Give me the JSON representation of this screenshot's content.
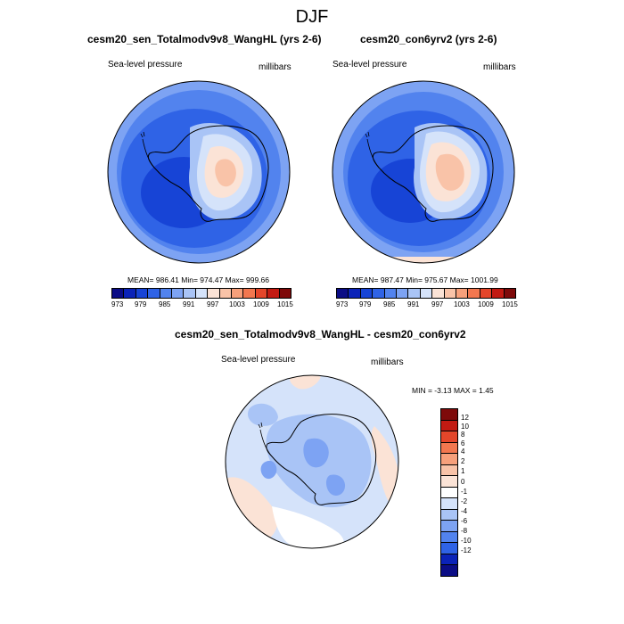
{
  "figure": {
    "title": "DJF"
  },
  "panels": [
    {
      "title": "cesm20_sen_Totalmodv9v8_WangHL (yrs 2-6)",
      "variable": "Sea-level pressure",
      "units": "millibars",
      "stats": "MEAN= 986.41  Min= 974.47  Max= 999.66",
      "colorbar_labels": [
        "973",
        "979",
        "985",
        "991",
        "997",
        "1003",
        "1009",
        "1015"
      ]
    },
    {
      "title": "cesm20_con6yrv2 (yrs 2-6)",
      "variable": "Sea-level pressure",
      "units": "millibars",
      "stats": "MEAN= 987.47  Min= 975.67  Max= 1001.99",
      "colorbar_labels": [
        "973",
        "979",
        "985",
        "991",
        "997",
        "1003",
        "1009",
        "1015"
      ]
    }
  ],
  "diff": {
    "title": "cesm20_sen_Totalmodv9v8_WangHL - cesm20_con6yrv2",
    "variable": "Sea-level pressure",
    "units": "millibars",
    "stats": "MIN =  -3.13 MAX =   1.45",
    "colorbar_labels": [
      "12",
      "10",
      "8",
      "6",
      "4",
      "2",
      "1",
      "0",
      "-1",
      "-2",
      "-4",
      "-6",
      "-8",
      "-10",
      "-12"
    ]
  },
  "colors": {
    "abs_scale": [
      "#0b0d85",
      "#0b23b8",
      "#1744d6",
      "#2f63e6",
      "#5283ee",
      "#7da3f3",
      "#a9c4f6",
      "#d5e3fa",
      "#fbe3d6",
      "#f9c3a8",
      "#f7a07b",
      "#f2774f",
      "#e4462a",
      "#c21a12",
      "#7e0a0a"
    ],
    "diff_scale": [
      "#7e0a0a",
      "#c21a12",
      "#e4462a",
      "#f2774f",
      "#f7a07b",
      "#f9c3a8",
      "#fbe3d6",
      "#ffffff",
      "#d5e3fa",
      "#a9c4f6",
      "#7da3f3",
      "#5283ee",
      "#2f63e6",
      "#0b23b8",
      "#0b0d85"
    ]
  }
}
